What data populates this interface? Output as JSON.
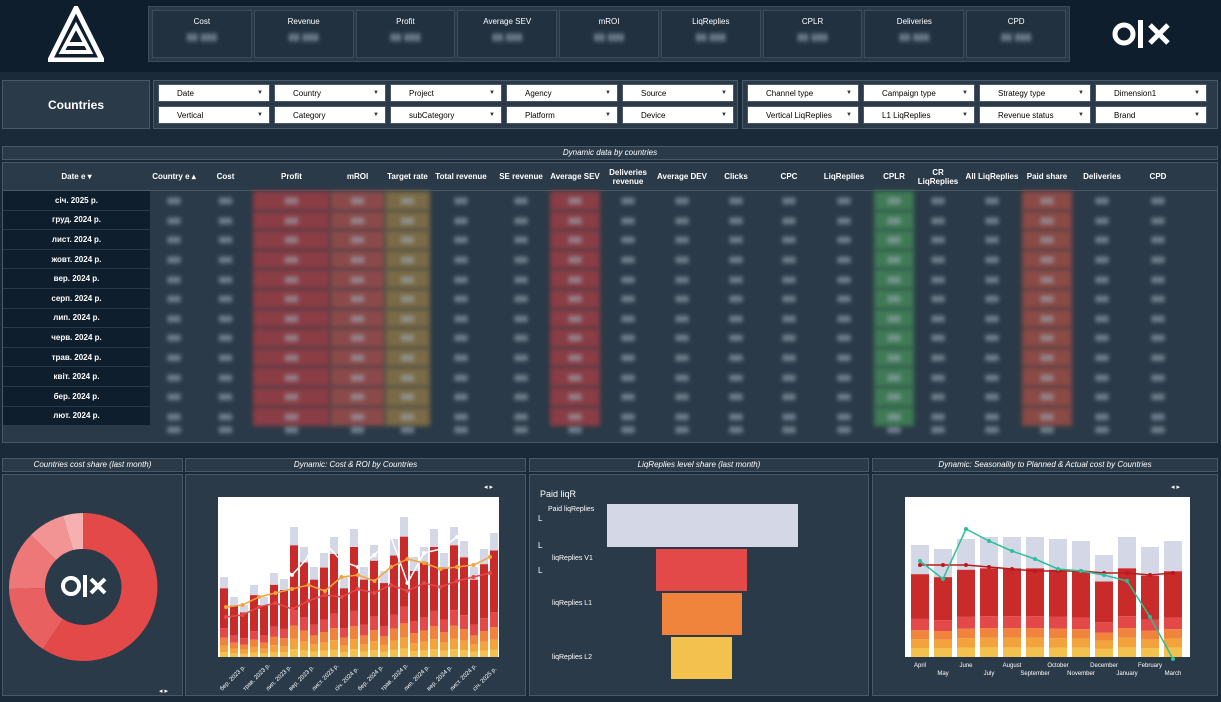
{
  "header": {
    "logo_right_text": "OLX",
    "kpis": [
      {
        "label": "Cost"
      },
      {
        "label": "Revenue"
      },
      {
        "label": "Profit"
      },
      {
        "label": "Average SEV"
      },
      {
        "label": "mROI"
      },
      {
        "label": "LiqReplies"
      },
      {
        "label": "CPLR"
      },
      {
        "label": "Deliveries"
      },
      {
        "label": "CPD"
      }
    ]
  },
  "page_title": "Countries",
  "filters": {
    "group1": [
      "Date",
      "Country",
      "Project",
      "Agency",
      "Source",
      "Vertical",
      "Category",
      "subCategory",
      "Platform",
      "Device"
    ],
    "group2": [
      "Channel type",
      "Campaign type",
      "Strategy type",
      "Dimension1",
      "Vertical LiqReplies",
      "L1 LiqReplies",
      "Revenue status",
      "Brand"
    ]
  },
  "table": {
    "title": "Dynamic data by countries",
    "columns": [
      "Date",
      "Country",
      "Cost",
      "Profit",
      "mROI",
      "Target rate",
      "Total revenue",
      "SE revenue",
      "Average SEV",
      "Deliveries revenue",
      "Average DEV",
      "Clicks",
      "CPC",
      "LiqReplies",
      "CPLR",
      "CR LiqReplies",
      "All LiqReplies",
      "Paid share",
      "Deliveries",
      "CPD"
    ],
    "dates": [
      "січ. 2025 р.",
      "груд. 2024 р.",
      "лист. 2024 р.",
      "жовт. 2024 р.",
      "вер. 2024 р.",
      "серп. 2024 р.",
      "лип. 2024 р.",
      "черв. 2024 р.",
      "трав. 2024 р.",
      "квіт. 2024 р.",
      "бер. 2024 р.",
      "лют. 2024 р."
    ],
    "sort_marks": [
      "e ▾",
      "e ▴"
    ]
  },
  "panels": {
    "p1_title": "Countries cost share (last month)",
    "p2_title": "Dynamic: Cost & ROI by Countries",
    "p3_title": "LiqReplies level share (last month)",
    "p4_title": "Dynamic: Seasonality to Planned & Actual cost by Countries",
    "donut_center": "OLX",
    "funnel_labels": [
      "Paid liqR",
      "Paid liqReplies",
      "L",
      "L",
      "liqReplies V1",
      "L",
      "liqReplies L1",
      "liqReplies L2"
    ],
    "arrows": "◂ ▸"
  },
  "chart_data": [
    {
      "type": "bar",
      "title": "Dynamic: Cost & ROI by Countries",
      "categories": [
        "бер. 2023 р.",
        "трав. 2023 р.",
        "лип. 2023 р.",
        "вер. 2023 р.",
        "лист. 2023 р.",
        "січ. 2024 р.",
        "бер. 2024 р.",
        "трав. 2024 р.",
        "лип. 2024 р.",
        "вер. 2024 р.",
        "лист. 2024 р.",
        "січ. 2025 р."
      ]
    },
    {
      "type": "bar",
      "title": "Dynamic: Seasonality to Planned & Actual cost by Countries",
      "categories": [
        "April",
        "May",
        "June",
        "July",
        "August",
        "September",
        "October",
        "November",
        "December",
        "January",
        "February",
        "March"
      ]
    }
  ],
  "colors": {
    "bg": "#1b2a38",
    "panel": "#2b3a48",
    "header": "#0f1e2d",
    "red": "#e34949",
    "orange": "#f0843c",
    "yellow": "#f2c14e",
    "lavender": "#d4d8e6"
  }
}
